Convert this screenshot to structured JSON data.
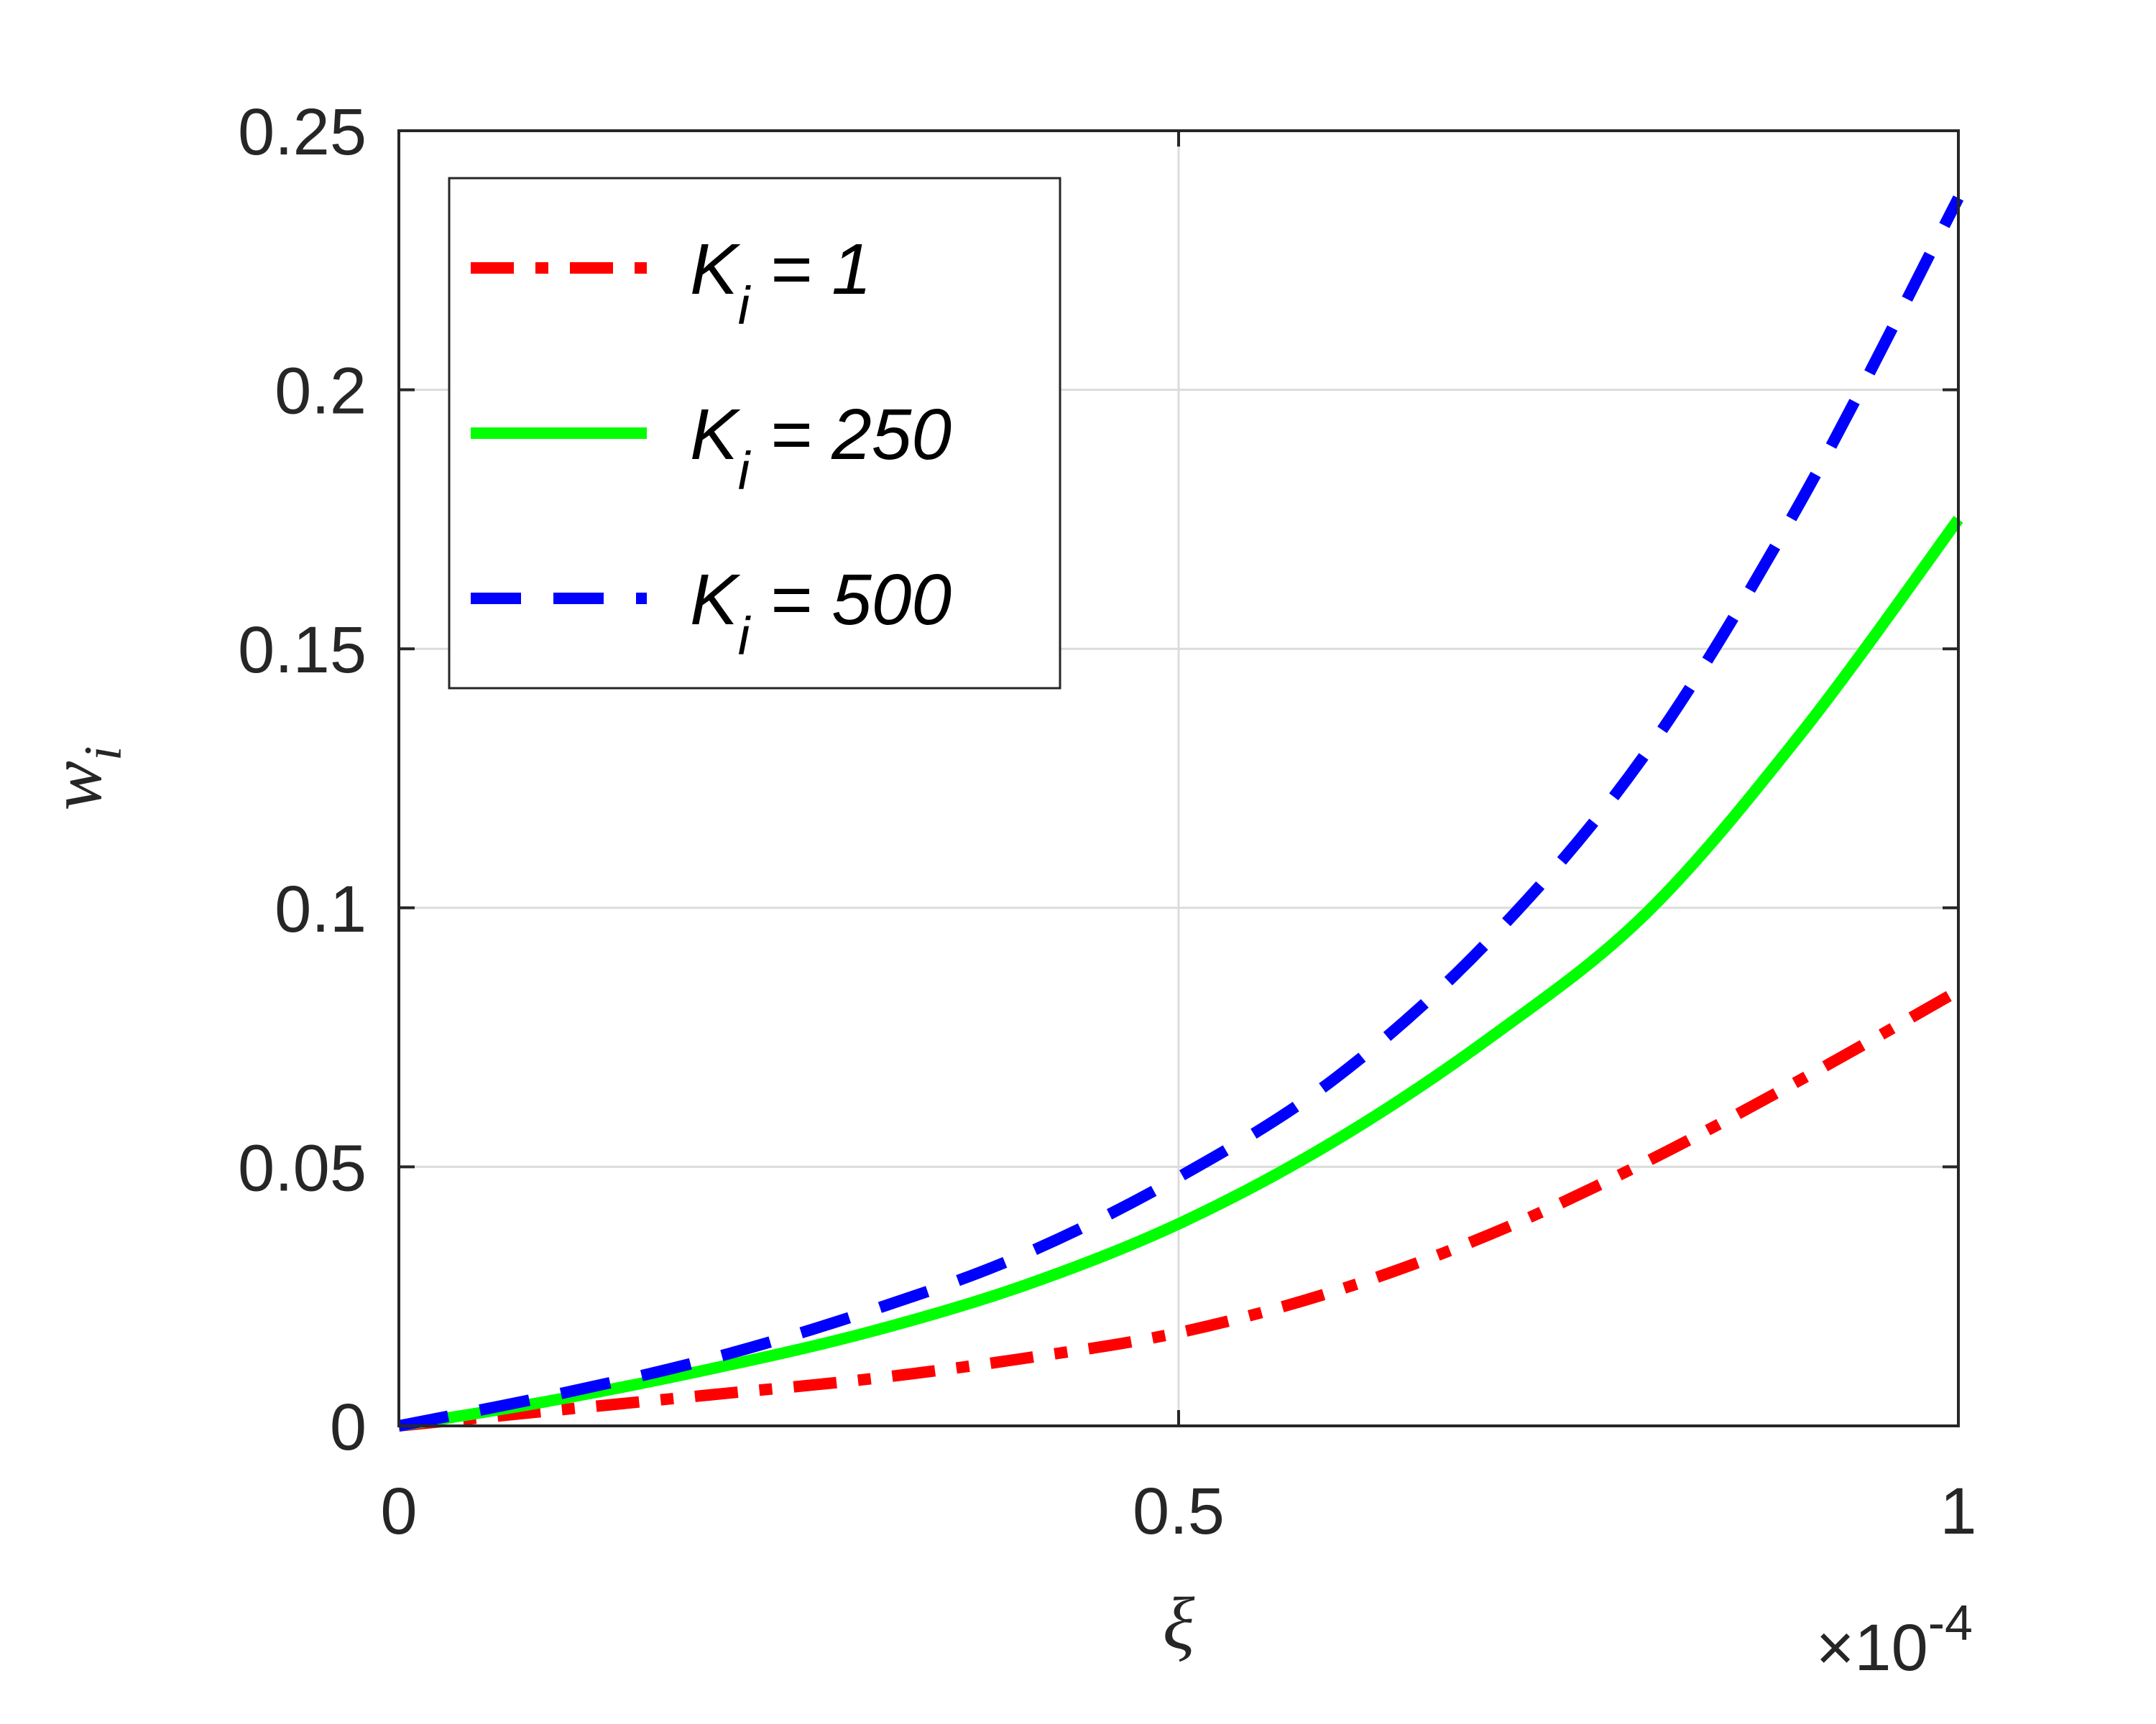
{
  "chart_data": {
    "type": "line",
    "title": "",
    "xlabel": "ξ",
    "ylabel": "w",
    "ylabel_subscript": "i",
    "x_exponent_label": "×10",
    "x_exponent": "-4",
    "xlim": [
      0,
      1
    ],
    "ylim": [
      0,
      0.25
    ],
    "x_ticks": [
      0,
      0.5,
      1
    ],
    "x_tick_labels": [
      "0",
      "0.5",
      "1"
    ],
    "y_ticks": [
      0,
      0.05,
      0.1,
      0.15,
      0.2,
      0.25
    ],
    "y_tick_labels": [
      "0",
      "0.05",
      "0.1",
      "0.15",
      "0.2",
      "0.25"
    ],
    "grid": true,
    "legend_position": "top-left",
    "x": [
      0,
      0.1,
      0.2,
      0.3,
      0.4,
      0.5,
      0.6,
      0.7,
      0.8,
      0.9,
      1.0
    ],
    "series": [
      {
        "name": "K",
        "name_subscript": "i",
        "name_value": " = 1",
        "color": "#ff0000",
        "style": "dashdot",
        "values": [
          0,
          0.003,
          0.006,
          0.009,
          0.013,
          0.018,
          0.026,
          0.037,
          0.051,
          0.067,
          0.084
        ]
      },
      {
        "name": "K",
        "name_subscript": "i",
        "name_value": " = 250",
        "color": "#00ff00",
        "style": "solid",
        "values": [
          0,
          0.005,
          0.011,
          0.018,
          0.027,
          0.039,
          0.055,
          0.075,
          0.099,
          0.134,
          0.175
        ]
      },
      {
        "name": "K",
        "name_subscript": "i",
        "name_value": " = 500",
        "color": "#0000ff",
        "style": "dashed",
        "values": [
          0,
          0.006,
          0.013,
          0.022,
          0.033,
          0.048,
          0.067,
          0.094,
          0.13,
          0.179,
          0.237
        ]
      }
    ]
  }
}
